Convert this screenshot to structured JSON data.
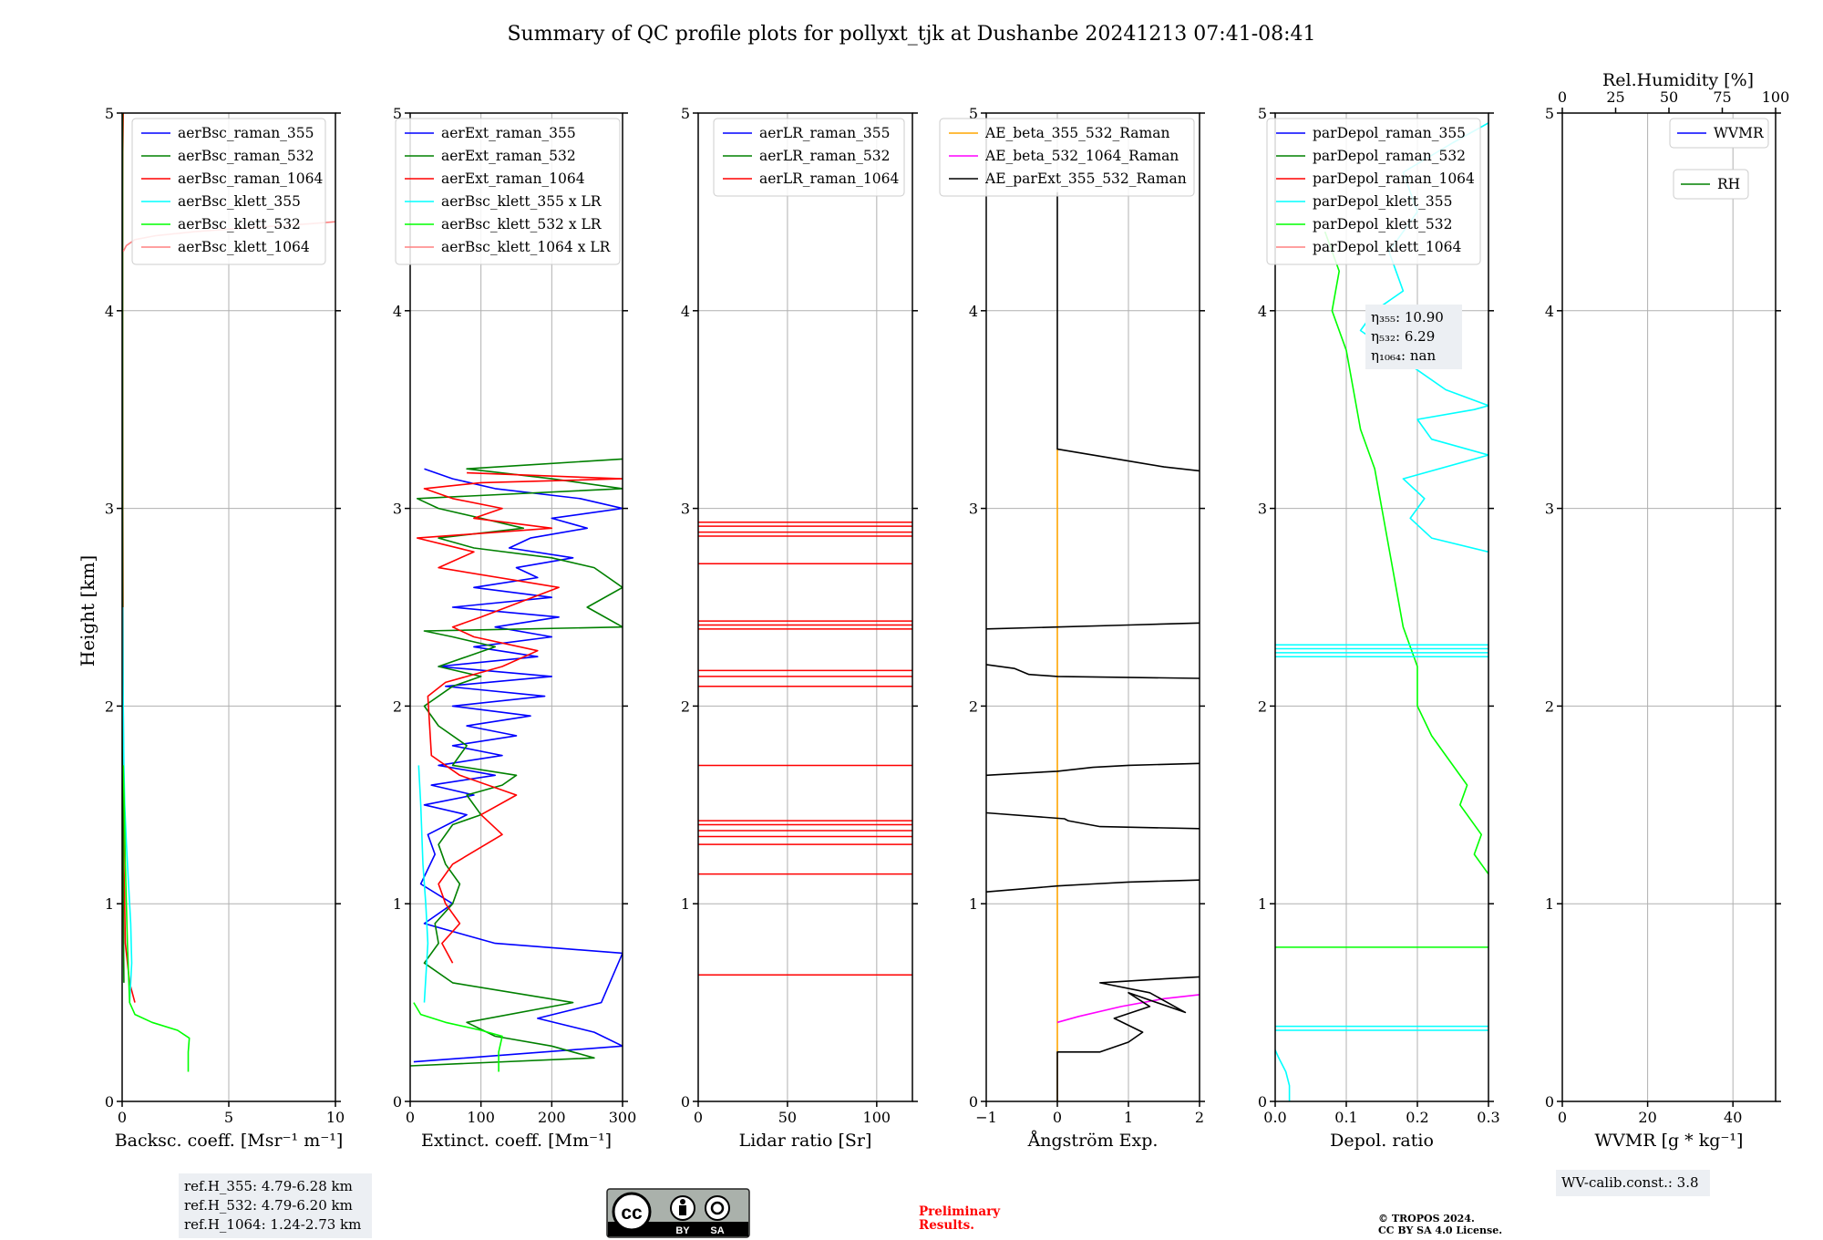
{
  "title": "Summary of QC profile plots for pollyxt_tjk at Dushanbe 20241213 07:41-08:41",
  "ylabel": "Height [km]",
  "colors": {
    "raman_355": "#0000ff",
    "raman_532": "#008000",
    "raman_1064": "#ff0000",
    "klett_355": "#00ffff",
    "klett_532": "#00ff00",
    "klett_1064": "#ff8080",
    "ae_beta_355_532": "#ffa500",
    "ae_beta_532_1064": "#ff00ff",
    "ae_parext": "#000000",
    "wvmr": "#0000ff",
    "rh": "#008000",
    "notebox": "#eceff3",
    "prelim": "#ff0000"
  },
  "chart_data": [
    {
      "type": "line",
      "id": "bsc",
      "xlabel": "Backsc. coeff. [Msr⁻¹ m⁻¹]",
      "xlim": [
        0,
        10
      ],
      "ylim": [
        0,
        5
      ],
      "xticks": [
        "0",
        "5",
        "10"
      ],
      "yticks": [
        "0",
        "1",
        "2",
        "3",
        "4",
        "5"
      ],
      "legend": [
        "aerBsc_raman_355",
        "aerBsc_raman_532",
        "aerBsc_raman_1064",
        "aerBsc_klett_355",
        "aerBsc_klett_532",
        "aerBsc_klett_1064"
      ],
      "series": [
        {
          "name": "aerBsc_raman_1064",
          "x": [
            0.6,
            0.35,
            0.15,
            0.08,
            0.05,
            0.03,
            0.02,
            0.02,
            0.02,
            0.03,
            0.05
          ],
          "y": [
            0.5,
            0.6,
            0.8,
            1.2,
            2.0,
            3.0,
            3.8,
            4.3,
            4.6,
            4.8,
            5.0
          ]
        },
        {
          "name": "aerBsc_raman_532",
          "x": [
            0.08,
            0.05,
            0.03,
            0.02,
            0.02,
            0.02
          ],
          "y": [
            0.6,
            1.0,
            2.0,
            3.0,
            4.0,
            5.0
          ]
        },
        {
          "name": "aerBsc_klett_355",
          "x": [
            0.35,
            0.45,
            0.4,
            0.3,
            0.2,
            0.12,
            0.08,
            0.05,
            0.03
          ],
          "y": [
            0.5,
            0.7,
            0.9,
            1.1,
            1.3,
            1.5,
            1.7,
            2.0,
            2.5
          ]
        },
        {
          "name": "aerBsc_klett_532",
          "x": [
            3.1,
            3.1,
            3.15,
            2.6,
            1.4,
            0.6,
            0.35,
            0.25,
            0.15,
            0.1,
            0.05
          ],
          "y": [
            0.15,
            0.25,
            0.32,
            0.36,
            0.4,
            0.44,
            0.5,
            0.8,
            1.2,
            1.5,
            1.7
          ]
        },
        {
          "name": "aerBsc_klett_1064",
          "x": [
            0.05,
            0.2,
            0.6,
            1.6,
            3.4,
            6.0,
            8.8,
            10.0
          ],
          "y": [
            4.3,
            4.33,
            4.36,
            4.38,
            4.4,
            4.42,
            4.44,
            4.45
          ]
        }
      ],
      "note_lines": [
        "ref.H_355: 4.79-6.28 km",
        "ref.H_532: 4.79-6.20 km",
        "ref.H_1064: 1.24-2.73 km"
      ]
    },
    {
      "type": "line",
      "id": "ext",
      "xlabel": "Extinct. coeff. [Mm⁻¹]",
      "xlim": [
        0,
        300
      ],
      "ylim": [
        0,
        5
      ],
      "xticks": [
        "0",
        "100",
        "200",
        "300"
      ],
      "yticks": [
        "0",
        "1",
        "2",
        "3",
        "4",
        "5"
      ],
      "legend": [
        "aerExt_raman_355",
        "aerExt_raman_532",
        "aerExt_raman_1064",
        "aerBsc_klett_355 x LR",
        "aerBsc_klett_532 x LR",
        "aerBsc_klett_1064 x LR"
      ],
      "series": [
        {
          "name": "aerExt_raman_355",
          "x": [
            5,
            300,
            260,
            180,
            270,
            300,
            120,
            20,
            60,
            15,
            35,
            25,
            80,
            20,
            90,
            30,
            120,
            40,
            130,
            60,
            150,
            80,
            170,
            60,
            190,
            50,
            200,
            40,
            180,
            90,
            200,
            120,
            210,
            60,
            200,
            90,
            180,
            150,
            230,
            140,
            170,
            250,
            200,
            300,
            240,
            120,
            60,
            20
          ],
          "y": [
            0.2,
            0.28,
            0.35,
            0.42,
            0.5,
            0.75,
            0.8,
            0.9,
            1.0,
            1.1,
            1.25,
            1.35,
            1.45,
            1.5,
            1.55,
            1.6,
            1.65,
            1.7,
            1.75,
            1.8,
            1.85,
            1.9,
            1.95,
            2.0,
            2.05,
            2.1,
            2.15,
            2.2,
            2.25,
            2.3,
            2.35,
            2.4,
            2.45,
            2.5,
            2.55,
            2.6,
            2.65,
            2.7,
            2.75,
            2.8,
            2.85,
            2.9,
            2.95,
            3.0,
            3.05,
            3.1,
            3.15,
            3.2
          ]
        },
        {
          "name": "aerExt_raman_532",
          "x": [
            0,
            260,
            200,
            120,
            80,
            230,
            60,
            20,
            40,
            35,
            60,
            70,
            50,
            40,
            60,
            100,
            80,
            130,
            150,
            60,
            80,
            40,
            20,
            60,
            100,
            40,
            80,
            120,
            60,
            20,
            300,
            250,
            300,
            260,
            200,
            90,
            40,
            160,
            100,
            40,
            10,
            300,
            200,
            80,
            300
          ],
          "y": [
            0.18,
            0.22,
            0.28,
            0.33,
            0.4,
            0.5,
            0.6,
            0.7,
            0.8,
            0.9,
            1.0,
            1.1,
            1.2,
            1.3,
            1.4,
            1.45,
            1.55,
            1.6,
            1.65,
            1.7,
            1.8,
            1.9,
            2.0,
            2.1,
            2.15,
            2.2,
            2.25,
            2.3,
            2.35,
            2.38,
            2.4,
            2.5,
            2.6,
            2.7,
            2.75,
            2.8,
            2.85,
            2.9,
            2.95,
            3.0,
            3.05,
            3.1,
            3.15,
            3.2,
            3.25
          ]
        },
        {
          "name": "aerExt_raman_1064",
          "x": [
            60,
            45,
            70,
            50,
            40,
            60,
            130,
            100,
            150,
            70,
            30,
            25,
            50,
            130,
            180,
            90,
            60,
            100,
            210,
            40,
            90,
            10,
            200,
            90,
            130,
            60,
            20,
            100,
            300,
            80
          ],
          "y": [
            0.7,
            0.8,
            0.9,
            1.0,
            1.1,
            1.2,
            1.35,
            1.45,
            1.55,
            1.65,
            1.75,
            2.05,
            2.12,
            2.2,
            2.28,
            2.35,
            2.4,
            2.45,
            2.6,
            2.7,
            2.78,
            2.85,
            2.9,
            2.95,
            3.0,
            3.05,
            3.1,
            3.13,
            3.15,
            3.18
          ]
        },
        {
          "name": "aerBsc_klett_355 x LR",
          "x": [
            20,
            25,
            22,
            18,
            15,
            12
          ],
          "y": [
            0.5,
            0.8,
            1.0,
            1.2,
            1.5,
            1.7
          ]
        },
        {
          "name": "aerBsc_klett_532 x LR",
          "x": [
            125,
            125,
            130,
            100,
            50,
            15,
            5
          ],
          "y": [
            0.15,
            0.25,
            0.33,
            0.36,
            0.4,
            0.44,
            0.5
          ]
        },
        {
          "name": "aerBsc_klett_1064 x LR",
          "x": [],
          "y": []
        }
      ]
    },
    {
      "type": "line",
      "id": "lr",
      "xlabel": "Lidar ratio [Sr]",
      "xlim": [
        0,
        120
      ],
      "ylim": [
        0,
        5
      ],
      "xticks": [
        "0",
        "50",
        "100"
      ],
      "yticks": [
        "0",
        "1",
        "2",
        "3",
        "4",
        "5"
      ],
      "legend": [
        "aerLR_raman_355",
        "aerLR_raman_532",
        "aerLR_raman_1064"
      ],
      "series": [
        {
          "name": "aerLR_raman_1064",
          "x": [
            0,
            120
          ],
          "hlines": [
            0.64,
            1.15,
            1.3,
            1.34,
            1.37,
            1.4,
            1.42,
            1.7,
            2.1,
            2.15,
            2.18,
            2.39,
            2.41,
            2.43,
            2.72,
            2.86,
            2.88,
            2.91,
            2.93
          ]
        }
      ]
    },
    {
      "type": "line",
      "id": "ae",
      "xlabel": "Ångström Exp.",
      "xlim": [
        -1,
        2
      ],
      "ylim": [
        0,
        5
      ],
      "xticks": [
        "−1",
        "0",
        "1",
        "2"
      ],
      "yticks": [
        "0",
        "1",
        "2",
        "3",
        "4",
        "5"
      ],
      "legend": [
        "AE_beta_355_532_Raman",
        "AE_beta_532_1064_Raman",
        "AE_parExt_355_532_Raman"
      ],
      "series": [
        {
          "name": "AE_beta_355_532_Raman",
          "x": [
            0,
            0
          ],
          "y": [
            0,
            3.3
          ]
        },
        {
          "name": "AE_beta_532_1064_Raman",
          "x": [
            0,
            0.3,
            0.9,
            1.5,
            2.0
          ],
          "y": [
            0.4,
            0.43,
            0.48,
            0.52,
            0.54
          ]
        },
        {
          "name": "AE_parExt_355_532_Raman",
          "x": [
            0,
            0,
            0.6,
            1.0,
            1.2,
            0.8,
            1.3,
            1.0,
            1.8,
            1.3,
            0.6,
            1.5,
            2.0
          ],
          "y": [
            0,
            0.25,
            0.25,
            0.3,
            0.35,
            0.42,
            0.48,
            0.55,
            0.45,
            0.55,
            0.6,
            0.62,
            0.63
          ]
        },
        {
          "name": "AE_parExt_355_532_Raman",
          "x": [
            -1,
            0,
            0.5,
            1.0,
            1.5,
            2.0
          ],
          "y": [
            1.06,
            1.09,
            1.1,
            1.11,
            1.115,
            1.12
          ]
        },
        {
          "name": "AE_parExt_355_532_Raman",
          "x": [
            -1,
            0.1,
            0.15,
            0.6,
            2.0
          ],
          "y": [
            1.46,
            1.43,
            1.42,
            1.39,
            1.38
          ]
        },
        {
          "name": "AE_parExt_355_532_Raman",
          "x": [
            -1,
            0,
            0.5,
            1.0,
            2.0
          ],
          "y": [
            1.65,
            1.67,
            1.69,
            1.7,
            1.71
          ]
        },
        {
          "name": "AE_parExt_355_532_Raman",
          "x": [
            -1,
            -0.6,
            -0.4,
            0,
            2.0
          ],
          "y": [
            2.21,
            2.19,
            2.16,
            2.15,
            2.14
          ]
        },
        {
          "name": "AE_parExt_355_532_Raman",
          "x": [
            -1,
            0,
            1.0,
            2.0
          ],
          "y": [
            2.39,
            2.4,
            2.41,
            2.42
          ]
        },
        {
          "name": "AE_parExt_355_532_Raman",
          "x": [
            0,
            0,
            0.5,
            1.0,
            1.5,
            2.0
          ],
          "y": [
            4.6,
            3.3,
            3.27,
            3.24,
            3.21,
            3.19
          ]
        }
      ]
    },
    {
      "type": "line",
      "id": "depol",
      "xlabel": "Depol. ratio",
      "xlim": [
        0.0,
        0.3
      ],
      "ylim": [
        0,
        5
      ],
      "xticks": [
        "0.0",
        "0.1",
        "0.2",
        "0.3"
      ],
      "yticks": [
        "0",
        "1",
        "2",
        "3",
        "4",
        "5"
      ],
      "legend": [
        "parDepol_raman_355",
        "parDepol_raman_532",
        "parDepol_raman_1064",
        "parDepol_klett_355",
        "parDepol_klett_532",
        "parDepol_klett_1064"
      ],
      "series": [
        {
          "name": "parDepol_klett_532",
          "x": [
            0.3,
            0.28,
            0.29,
            0.26,
            0.27,
            0.24,
            0.22,
            0.2,
            0.2,
            0.18,
            0.17,
            0.16,
            0.15,
            0.14,
            0.12,
            0.11,
            0.1,
            0.08,
            0.09,
            0.07
          ],
          "y": [
            1.15,
            1.25,
            1.35,
            1.5,
            1.6,
            1.75,
            1.85,
            2.0,
            2.2,
            2.4,
            2.6,
            2.8,
            3.0,
            3.2,
            3.4,
            3.6,
            3.8,
            4.0,
            4.2,
            4.4
          ]
        },
        {
          "name": "parDepol_klett_355",
          "x": [
            0.3,
            0.22,
            0.19,
            0.21,
            0.18,
            0.3,
            0.22,
            0.2,
            0.28,
            0.3,
            0.24,
            0.2,
            0.16,
            0.12,
            0.14,
            0.18,
            0.16,
            0.2,
            0.18,
            0.25,
            0.3
          ],
          "y": [
            2.78,
            2.85,
            2.95,
            3.05,
            3.15,
            3.27,
            3.35,
            3.45,
            3.5,
            3.52,
            3.6,
            3.7,
            3.8,
            3.9,
            4.0,
            4.1,
            4.3,
            4.5,
            4.7,
            4.85,
            4.95
          ]
        },
        {
          "name": "parDepol_klett_355",
          "x": [
            0.02,
            0.02,
            0.015,
            0.005,
            0
          ],
          "y": [
            0,
            0.08,
            0.15,
            0.22,
            0.26
          ]
        },
        {
          "name": "parDepol_klett_355",
          "x": [
            0,
            0.3
          ],
          "hlines": [
            0.36,
            0.38,
            2.25,
            2.27,
            2.29,
            2.31
          ]
        },
        {
          "name": "parDepol_klett_532",
          "x": [
            0,
            0.3
          ],
          "hlines": [
            0.78
          ]
        }
      ],
      "note_lines": [
        "η₃₅₅: 10.90",
        "η₅₃₂: 6.29",
        "η₁₀₆₄: nan"
      ]
    },
    {
      "type": "line",
      "id": "wv",
      "xlabel": "WVMR [g * kg⁻¹]",
      "top_xlabel": "Rel.Humidity [%]",
      "xlim": [
        0,
        50
      ],
      "ylim": [
        0,
        5
      ],
      "top_xlim": [
        0,
        100
      ],
      "xticks": [
        "0",
        "20",
        "40"
      ],
      "top_xticks": [
        "0",
        "25",
        "50",
        "75",
        "100"
      ],
      "yticks": [
        "0",
        "1",
        "2",
        "3",
        "4",
        "5"
      ],
      "legend": [
        "WVMR",
        "RH"
      ],
      "series": [],
      "note_lines": [
        "WV-calib.const.: 3.8"
      ]
    }
  ],
  "footer": {
    "prelim_line1": "Preliminary",
    "prelim_line2": "Results.",
    "copyright_line1": "© TROPOS 2024.",
    "copyright_line2": "CC BY SA 4.0 License.",
    "cc_logo": "cc",
    "cc_by": "BY",
    "cc_sa": "SA"
  }
}
